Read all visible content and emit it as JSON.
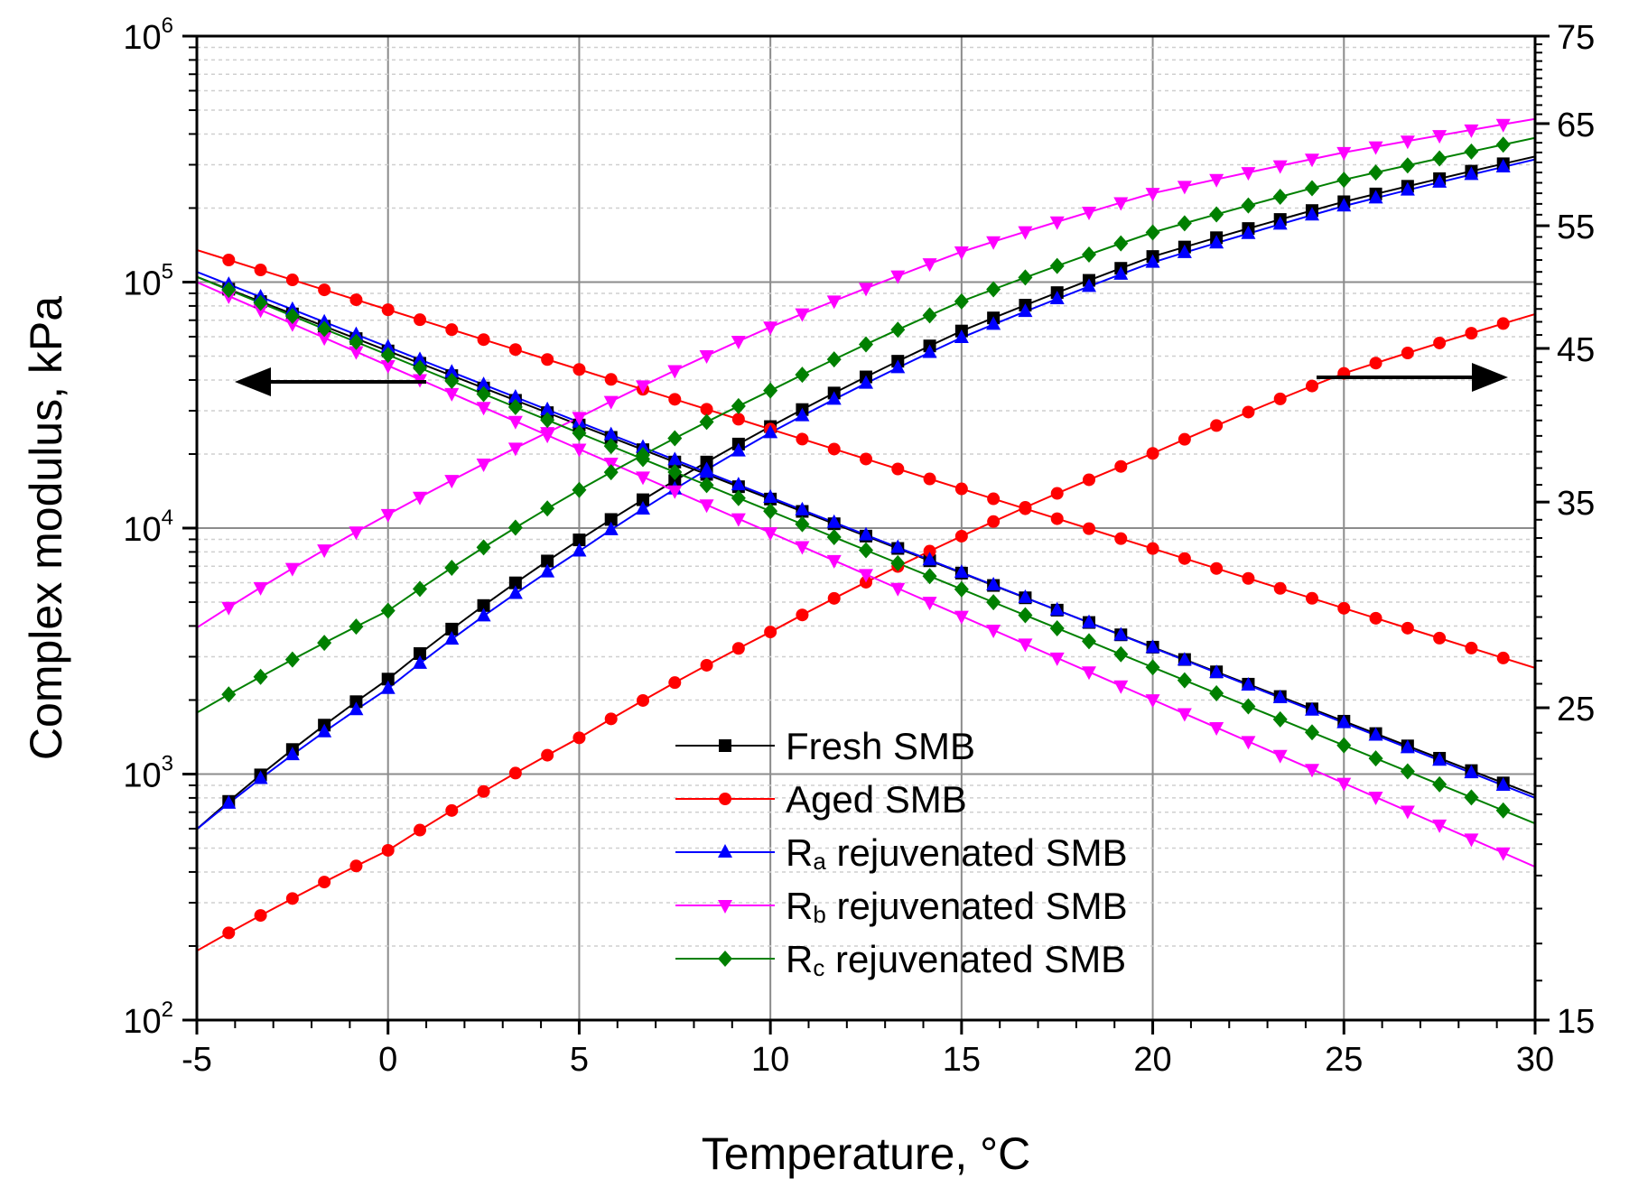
{
  "chart_data": {
    "type": "line",
    "title": "",
    "xlabel": "Temperature, °C",
    "ylabel": "Complex modulus, kPa",
    "y2label": "",
    "xlim": [
      -5,
      30
    ],
    "ylim": [
      100,
      1000000
    ],
    "yscale": "log",
    "y2lim": [
      15,
      75
    ],
    "y2scale": "log",
    "xticks": [
      -5,
      0,
      5,
      10,
      15,
      20,
      25,
      30
    ],
    "xtick_labels": [
      "-5",
      "0",
      "5",
      "10",
      "15",
      "20",
      "25",
      "30"
    ],
    "yticks": [
      {
        "base": "10",
        "exp": "2",
        "value": 100
      },
      {
        "base": "10",
        "exp": "3",
        "value": 1000
      },
      {
        "base": "10",
        "exp": "4",
        "value": 10000
      },
      {
        "base": "10",
        "exp": "5",
        "value": 100000
      },
      {
        "base": "10",
        "exp": "6",
        "value": 1000000
      }
    ],
    "y2ticks": [
      15,
      25,
      35,
      45,
      55,
      65,
      75
    ],
    "y2tick_labels": [
      "15",
      "25",
      "35",
      "45",
      "55",
      "65",
      "75"
    ],
    "grid": true,
    "legend_position": "bottom-center",
    "annotations": [
      "arrow pointing left (modulus on left axis)",
      "arrow pointing right (phase angle on right axis)"
    ],
    "series": [
      {
        "name": "Fresh SMB",
        "legend": {
          "main": "Fresh SMB"
        },
        "color": "#000000",
        "marker": "square",
        "axis": "left",
        "x": [
          -5,
          30
        ],
        "y": [
          105000,
          820
        ]
      },
      {
        "name": "Fresh SMB",
        "legend": null,
        "color": "#000000",
        "marker": "square",
        "axis": "right",
        "x": [
          -5,
          0,
          5,
          10,
          15,
          20,
          25,
          30
        ],
        "y": [
          20.5,
          26.2,
          32.9,
          39.6,
          46.3,
          52.3,
          57.2,
          61.6
        ]
      },
      {
        "name": "Aged SMB",
        "legend": {
          "main": "Aged SMB"
        },
        "color": "#ff0000",
        "marker": "circle",
        "axis": "left",
        "x": [
          -5,
          30
        ],
        "y": [
          135000,
          2700
        ]
      },
      {
        "name": "Aged SMB",
        "legend": null,
        "color": "#ff0000",
        "marker": "circle",
        "axis": "right",
        "x": [
          -5,
          0,
          5,
          10,
          15,
          20,
          25,
          30
        ],
        "y": [
          16.8,
          19.8,
          23.8,
          28.3,
          33.1,
          37.9,
          43.2,
          47.6
        ]
      },
      {
        "name": "Ra rejuvenated SMB",
        "legend": {
          "prefix": "R",
          "sub": "a",
          "main": " rejuvenated SMB"
        },
        "color": "#0000ff",
        "marker": "triangle-up",
        "axis": "left",
        "x": [
          -5,
          30
        ],
        "y": [
          110000,
          800
        ]
      },
      {
        "name": "Ra rejuvenated SMB",
        "legend": null,
        "color": "#0000ff",
        "marker": "triangle-up",
        "axis": "right",
        "x": [
          -5,
          0,
          5,
          10,
          15,
          20,
          25,
          30
        ],
        "y": [
          20.5,
          25.8,
          32.3,
          39.2,
          45.8,
          51.8,
          56.8,
          61.3
        ]
      },
      {
        "name": "Rb rejuvenated SMB",
        "legend": {
          "prefix": "R",
          "sub": "b",
          "main": " rejuvenated SMB"
        },
        "color": "#ff00ff",
        "marker": "triangle-down",
        "axis": "left",
        "x": [
          -5,
          30
        ],
        "y": [
          100000,
          420
        ]
      },
      {
        "name": "Rb rejuvenated SMB",
        "legend": null,
        "color": "#ff00ff",
        "marker": "triangle-down",
        "axis": "right",
        "x": [
          -5,
          0,
          5,
          10,
          15,
          20,
          25,
          30
        ],
        "y": [
          28.5,
          34.3,
          40.2,
          46.6,
          52.7,
          58.0,
          62.0,
          65.5
        ]
      },
      {
        "name": "Rc rejuvenated SMB",
        "legend": {
          "prefix": "R",
          "sub": "c",
          "main": " rejuvenated SMB"
        },
        "color": "#008000",
        "marker": "diamond",
        "axis": "left",
        "x": [
          -5,
          30
        ],
        "y": [
          105000,
          630
        ]
      },
      {
        "name": "Rc rejuvenated SMB",
        "legend": null,
        "color": "#008000",
        "marker": "diamond",
        "axis": "right",
        "x": [
          -5,
          0,
          5,
          10,
          15,
          20,
          25,
          30
        ],
        "y": [
          24.8,
          29.3,
          35.7,
          42.0,
          48.6,
          54.4,
          59.3,
          63.5
        ]
      }
    ]
  }
}
